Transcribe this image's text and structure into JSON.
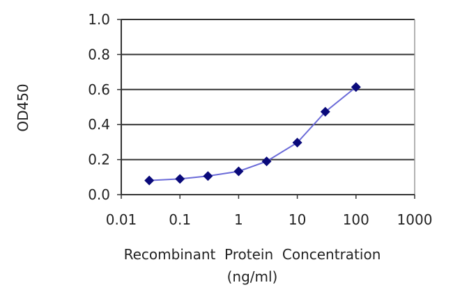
{
  "chart_data": {
    "type": "line",
    "title": "",
    "xlabel": "Recombinant  Protein  Concentration",
    "xlabel_unit": "(ng/ml)",
    "ylabel": "OD450",
    "xscale": "log",
    "xlim": [
      0.01,
      1000
    ],
    "ylim": [
      0,
      1.0
    ],
    "x_ticks": [
      "0.01",
      "0.1",
      "1",
      "10",
      "100",
      "1000"
    ],
    "y_ticks": [
      "0.0",
      "0.2",
      "0.4",
      "0.6",
      "0.8",
      "1.0"
    ],
    "grid": "horizontal",
    "marker": "diamond",
    "colors": {
      "line": "#6a6ad8",
      "marker": "#0a0a7a",
      "grid": "#333333"
    },
    "series": [
      {
        "x": [
          0.03,
          0.1,
          0.3,
          1,
          3,
          10,
          30,
          100
        ],
        "y": [
          0.081,
          0.09,
          0.106,
          0.133,
          0.19,
          0.297,
          0.473,
          0.614
        ]
      }
    ]
  }
}
